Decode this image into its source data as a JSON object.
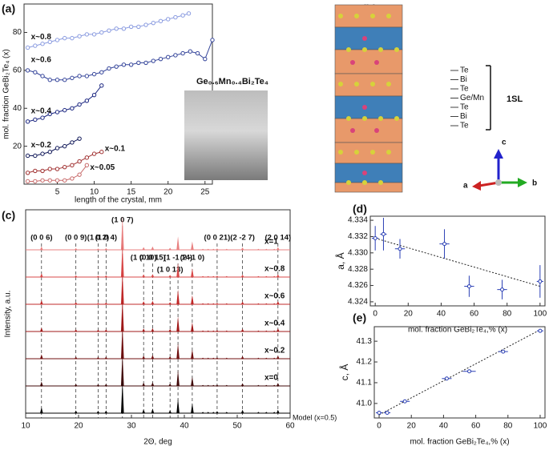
{
  "chart_data": [
    {
      "type": "line",
      "panel": "(a)",
      "xlabel": "length of the crystal, mm",
      "ylabel": "mol. fraction GeBi₂Te₄ (x)",
      "annotation": "Ge₀.₆Mn₀.₄Bi₂Te₄",
      "xlim": [
        0.5,
        26
      ],
      "xticks": [
        5,
        10,
        15,
        20,
        25
      ],
      "ylim": [
        0,
        95
      ],
      "yticks": [
        20,
        40,
        60,
        80
      ],
      "series": [
        {
          "name": "x~0.8",
          "color": "#8a9be0",
          "x": [
            1,
            2,
            3,
            4,
            5,
            6,
            7,
            8,
            9,
            10,
            11,
            12,
            13,
            14,
            15,
            16,
            17,
            18,
            19,
            20,
            21,
            22,
            22.8
          ],
          "values": [
            72,
            73,
            74,
            75,
            76,
            77,
            77,
            78,
            79,
            79,
            80,
            81,
            82,
            82,
            83,
            83,
            84,
            85,
            86,
            87,
            88,
            89,
            90
          ]
        },
        {
          "name": "x~0.6",
          "color": "#34449a",
          "x": [
            1,
            2,
            3,
            4,
            5,
            6,
            7,
            8,
            9,
            10,
            11,
            12,
            13,
            14,
            15,
            16,
            17,
            18,
            19,
            20,
            21,
            22,
            23,
            24,
            25,
            26
          ],
          "values": [
            60,
            59,
            57,
            55,
            55,
            55,
            56,
            57,
            57,
            58,
            59,
            61,
            62,
            63,
            63,
            64,
            64,
            65,
            66,
            67,
            68,
            69,
            70,
            69,
            66,
            76
          ]
        },
        {
          "name": "x~0.4",
          "color": "#1a2580",
          "x": [
            1,
            2,
            3,
            4,
            5,
            6,
            7,
            8,
            9,
            10,
            11
          ],
          "values": [
            33,
            34,
            35,
            37,
            38,
            39,
            40,
            42,
            44,
            47,
            52
          ]
        },
        {
          "name": "x~0.2",
          "color": "#101858",
          "x": [
            1,
            2,
            3,
            4,
            5,
            6,
            7,
            8
          ],
          "values": [
            15,
            15,
            16,
            17,
            19,
            20,
            22,
            24
          ]
        },
        {
          "name": "x~0.1",
          "color": "#a03030",
          "x": [
            1,
            2,
            3,
            4,
            5,
            6,
            7,
            8,
            9,
            10,
            11
          ],
          "values": [
            6,
            7,
            7,
            8,
            8,
            9,
            10,
            12,
            14,
            16,
            17
          ]
        },
        {
          "name": "x~0.05",
          "color": "#c86a6a",
          "x": [
            1,
            2,
            3,
            4,
            5,
            6,
            7,
            8,
            9
          ],
          "values": [
            1.5,
            1.5,
            2,
            2,
            2,
            2,
            3,
            5,
            10
          ]
        }
      ]
    },
    {
      "type": "xrd",
      "panel": "(c)",
      "xlabel": "2Θ, deg",
      "ylabel": "Intensity, a.u.",
      "xlim": [
        10,
        60
      ],
      "xticks": [
        10,
        20,
        30,
        40,
        50,
        60
      ],
      "peaks": [
        13,
        19.5,
        23.7,
        25.2,
        28.3,
        32.3,
        34,
        37.3,
        38.8,
        41.5,
        43.5,
        44.5,
        45.5,
        46.2,
        48,
        51,
        54,
        55.5,
        57,
        57.7
      ],
      "peak_labels": [
        "(0 0 6)",
        "(0 0 9)",
        "(1 0 2)",
        "(1 0 4)",
        "(1 0 7)",
        "(1 0 10)",
        "(0 0 15)",
        "(1 0 13)",
        "(1 -1 14)",
        "(2 -1 0)",
        null,
        null,
        null,
        "(0 0 21)",
        null,
        "(2 -2 7)",
        null,
        null,
        null,
        "(2 0 14)"
      ],
      "series": [
        {
          "name": "x=1",
          "color": "#e88080",
          "values": [
            10,
            5,
            4,
            5,
            100,
            8,
            10,
            6,
            40,
            25,
            3,
            3,
            3,
            4,
            3,
            7,
            3,
            3,
            3,
            8
          ]
        },
        {
          "name": "x~0.8",
          "color": "#d84848",
          "values": [
            11,
            5,
            4,
            5,
            100,
            8,
            9,
            6,
            42,
            26,
            3,
            3,
            3,
            4,
            3,
            7,
            3,
            3,
            3,
            8
          ]
        },
        {
          "name": "x~0.6",
          "color": "#c02828",
          "values": [
            12,
            6,
            4,
            5,
            100,
            9,
            10,
            6,
            44,
            27,
            3,
            3,
            3,
            4,
            3,
            8,
            3,
            3,
            3,
            9
          ]
        },
        {
          "name": "x~0.4",
          "color": "#a01818",
          "values": [
            12,
            6,
            5,
            6,
            100,
            9,
            10,
            7,
            45,
            27,
            3,
            3,
            3,
            4,
            3,
            8,
            3,
            3,
            3,
            9
          ]
        },
        {
          "name": "x~0.2",
          "color": "#701010",
          "values": [
            13,
            6,
            5,
            6,
            100,
            9,
            11,
            7,
            46,
            28,
            3,
            3,
            3,
            4,
            3,
            8,
            3,
            3,
            3,
            9
          ]
        },
        {
          "name": "x=0",
          "color": "#400808",
          "values": [
            13,
            6,
            5,
            6,
            100,
            10,
            11,
            7,
            47,
            28,
            3,
            3,
            3,
            4,
            3,
            8,
            3,
            3,
            3,
            9
          ]
        },
        {
          "name": "Model (x=0.5)",
          "color": "#000000",
          "values": [
            18,
            8,
            7,
            8,
            100,
            12,
            14,
            9,
            45,
            30,
            4,
            4,
            4,
            6,
            4,
            10,
            4,
            4,
            4,
            10
          ]
        }
      ]
    },
    {
      "type": "errorbar",
      "panel": "(d)",
      "xlabel": "mol. fraction GeBi₂Te₄,% (x)",
      "ylabel": "a, Å",
      "color": "#2a3fb5",
      "xlim": [
        -3,
        103
      ],
      "xticks": [
        0,
        20,
        40,
        60,
        80,
        100
      ],
      "ylim": [
        4.3235,
        4.3345
      ],
      "yticks": [
        4.324,
        4.326,
        4.328,
        {
          "value": 4.33,
          "label": "4.330"
        },
        4.332,
        4.334
      ],
      "x": [
        0,
        5,
        15,
        42,
        57,
        77,
        100
      ],
      "x_err": [
        2,
        2,
        3,
        3,
        3,
        3,
        2
      ],
      "values": [
        4.3318,
        4.3323,
        4.3305,
        4.3311,
        4.3259,
        4.3255,
        4.3265
      ],
      "errors": [
        0.0015,
        0.002,
        0.0012,
        0.0018,
        0.0013,
        0.0012,
        0.002
      ],
      "fit": {
        "x": [
          0,
          100
        ],
        "y": [
          4.3318,
          4.3259
        ]
      }
    },
    {
      "type": "errorbar",
      "panel": "(e)",
      "xlabel": "mol. fraction GeBi₂Te₄,% (x)",
      "ylabel": "c, Å",
      "color": "#2a3fb5",
      "xlim": [
        -3,
        103
      ],
      "xticks": [
        0,
        20,
        40,
        60,
        80,
        100
      ],
      "ylim": [
        40.93,
        41.37
      ],
      "yticks": [
        {
          "value": 41,
          "label": "41.0"
        },
        41.1,
        41.2,
        41.3
      ],
      "x": [
        0,
        5,
        16,
        42,
        56,
        77,
        100
      ],
      "x_err": [
        2,
        2,
        3,
        3,
        4,
        3,
        2
      ],
      "values": [
        40.955,
        40.955,
        41.01,
        41.12,
        41.155,
        41.25,
        41.35
      ],
      "errors": [
        0.006,
        0.006,
        0.006,
        0.006,
        0.006,
        0.006,
        0.006
      ],
      "fit": {
        "x": [
          0,
          100
        ],
        "y": [
          40.945,
          41.355
        ]
      }
    }
  ],
  "structure": {
    "panel": "(b)",
    "layer_labels": [
      "Te",
      "Bi",
      "Te",
      "Ge/Mn",
      "Te",
      "Bi",
      "Te"
    ],
    "block_label": "1SL",
    "axes": [
      "c",
      "a",
      "b"
    ]
  }
}
